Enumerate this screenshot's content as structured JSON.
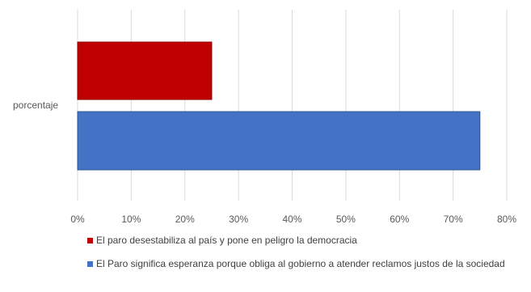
{
  "chart_data": {
    "type": "bar",
    "orientation": "horizontal",
    "categories": [
      "porcentaje"
    ],
    "series": [
      {
        "name": "El paro desestabiliza al país y pone en peligro la democracia",
        "values": [
          0.25
        ],
        "color": "#c00000"
      },
      {
        "name": "El Paro significa esperanza porque obliga al gobierno a atender reclamos justos de la sociedad",
        "values": [
          0.75
        ],
        "color": "#4472c4"
      }
    ],
    "xlim": [
      0,
      0.8
    ],
    "xticks": [
      {
        "value": 0,
        "label": "0%"
      },
      {
        "value": 0.1,
        "label": "10%"
      },
      {
        "value": 0.2,
        "label": "20%"
      },
      {
        "value": 0.3,
        "label": "30%"
      },
      {
        "value": 0.4,
        "label": "40%"
      },
      {
        "value": 0.5,
        "label": "50%"
      },
      {
        "value": 0.6,
        "label": "60%"
      },
      {
        "value": 0.7,
        "label": "70%"
      },
      {
        "value": 0.8,
        "label": "80%"
      }
    ],
    "grid": true,
    "legend_position": "bottom"
  }
}
